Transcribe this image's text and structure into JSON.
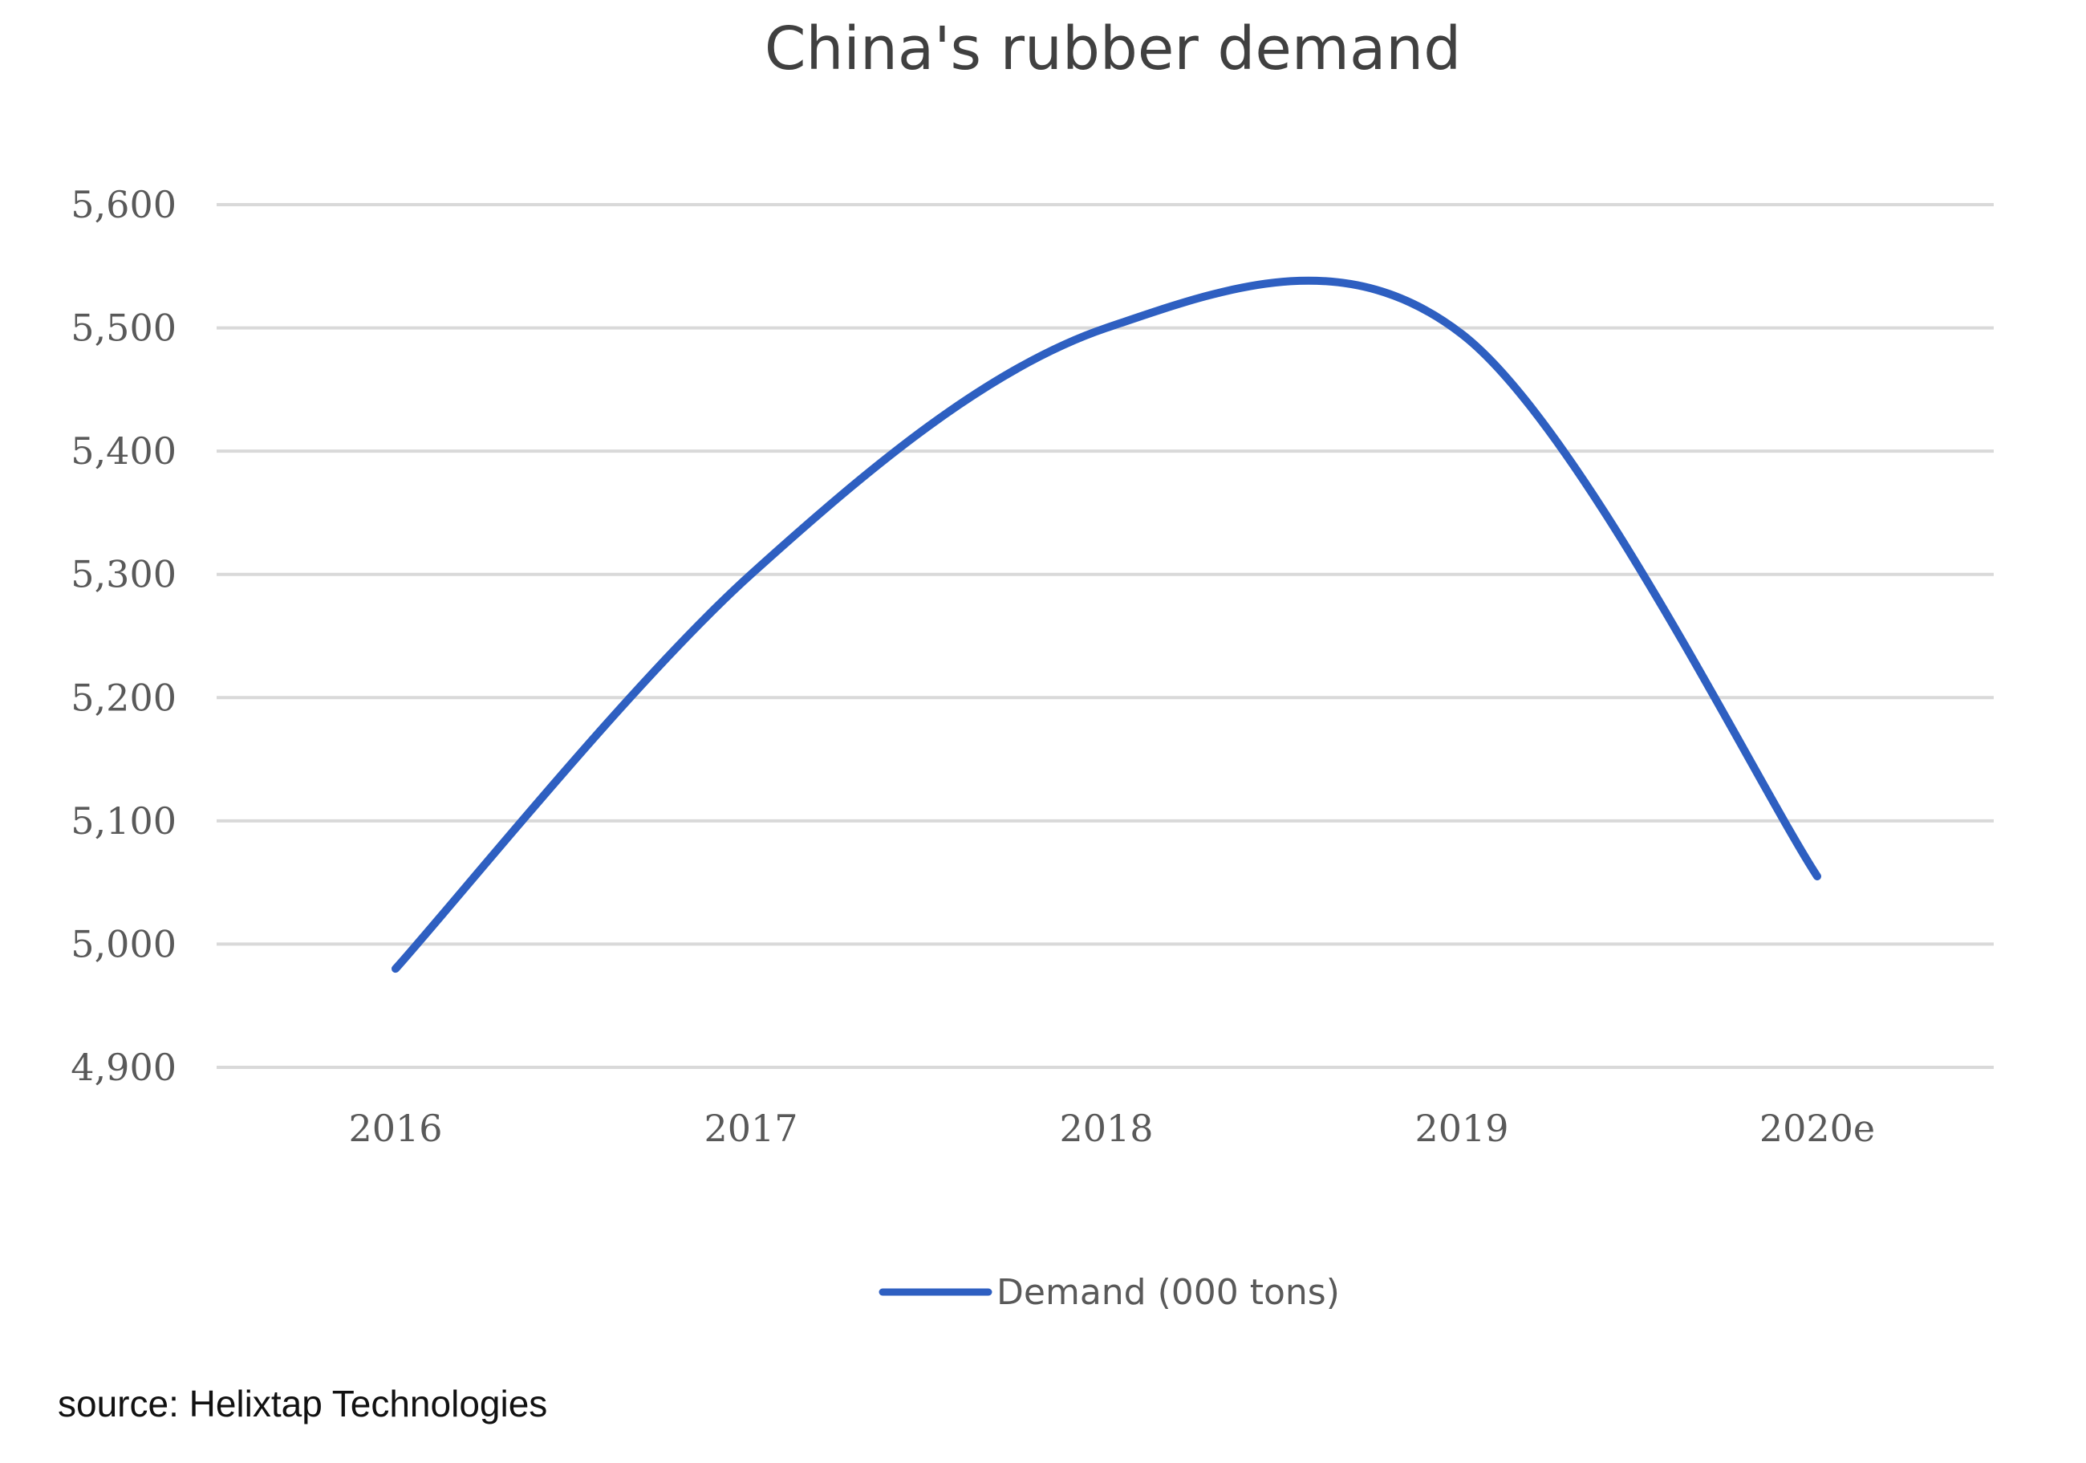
{
  "chart_data": {
    "type": "line",
    "title": "China's rubber demand",
    "categories": [
      "2016",
      "2017",
      "2018",
      "2019",
      "2020e"
    ],
    "series": [
      {
        "name": "Demand (000 tons)",
        "values": [
          4980,
          5300,
          5500,
          5495,
          5055
        ],
        "color": "#2e5fc1",
        "smooth": true
      }
    ],
    "xlabel": "",
    "ylabel": "",
    "ylim": [
      4900,
      5600
    ],
    "yticks": [
      4900,
      5000,
      5100,
      5200,
      5300,
      5400,
      5500,
      5600
    ],
    "ytick_labels": [
      "4,900",
      "5,000",
      "5,100",
      "5,200",
      "5,300",
      "5,400",
      "5,500",
      "5,600"
    ],
    "grid": true,
    "grid_color": "#d9d9d9",
    "legend_position": "bottom"
  },
  "source_text": "source: Helixtap Technologies"
}
